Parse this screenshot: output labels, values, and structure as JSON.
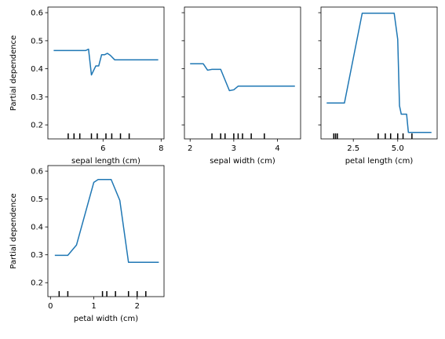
{
  "colors": {
    "line": "#1f77b4",
    "axes": "#000000",
    "deciles": "#000000",
    "background": "#ffffff"
  },
  "chart_data": [
    {
      "type": "line",
      "xlabel": "sepal length (cm)",
      "ylabel": "Partial dependence",
      "xlim": [
        4.1,
        8.1
      ],
      "ylim": [
        0.15,
        0.62
      ],
      "xticks": [
        6,
        8
      ],
      "yticks": [
        0.2,
        0.3,
        0.4,
        0.5,
        0.6
      ],
      "x": [
        4.3,
        5.05,
        5.4,
        5.5,
        5.6,
        5.75,
        5.85,
        5.95,
        6.05,
        6.15,
        6.25,
        6.4,
        7.9
      ],
      "values": [
        0.465,
        0.465,
        0.465,
        0.47,
        0.378,
        0.41,
        0.41,
        0.45,
        0.45,
        0.455,
        0.448,
        0.432,
        0.432
      ],
      "deciles": [
        4.8,
        5.0,
        5.2,
        5.6,
        5.8,
        6.1,
        6.3,
        6.6,
        6.9
      ]
    },
    {
      "type": "line",
      "xlabel": "sepal width (cm)",
      "ylabel": "",
      "xlim": [
        1.87,
        4.53
      ],
      "ylim": [
        0.15,
        0.62
      ],
      "xticks": [
        2,
        3,
        4
      ],
      "yticks": [
        0.2,
        0.3,
        0.4,
        0.5,
        0.6
      ],
      "x": [
        2.0,
        2.3,
        2.4,
        2.5,
        2.7,
        2.9,
        3.0,
        3.1,
        3.5,
        4.4
      ],
      "values": [
        0.418,
        0.418,
        0.395,
        0.398,
        0.398,
        0.322,
        0.325,
        0.338,
        0.338,
        0.338
      ],
      "deciles": [
        2.5,
        2.7,
        2.8,
        3.0,
        3.1,
        3.2,
        3.4,
        3.7
      ]
    },
    {
      "type": "line",
      "xlabel": "petal length (cm)",
      "ylabel": "",
      "xlim": [
        0.68,
        7.22
      ],
      "ylim": [
        0.15,
        0.62
      ],
      "xticks": [
        2.5,
        5.0
      ],
      "xticklabels": [
        "2.5",
        "5.0"
      ],
      "yticks": [
        0.2,
        0.3,
        0.4,
        0.5,
        0.6
      ],
      "x": [
        1.0,
        2.0,
        3.0,
        4.8,
        5.0,
        5.1,
        5.2,
        5.5,
        5.6,
        6.9
      ],
      "values": [
        0.278,
        0.278,
        0.598,
        0.598,
        0.505,
        0.268,
        0.238,
        0.238,
        0.173,
        0.173
      ],
      "deciles": [
        1.4,
        1.5,
        1.6,
        3.9,
        4.3,
        4.6,
        5.0,
        5.3,
        5.8
      ]
    },
    {
      "type": "line",
      "xlabel": "petal width (cm)",
      "ylabel": "Partial dependence",
      "xlim": [
        -0.06,
        2.62
      ],
      "ylim": [
        0.15,
        0.62
      ],
      "xticks": [
        0,
        1,
        2
      ],
      "yticks": [
        0.2,
        0.3,
        0.4,
        0.5,
        0.6
      ],
      "x": [
        0.1,
        0.4,
        0.6,
        1.0,
        1.1,
        1.4,
        1.6,
        1.8,
        2.5
      ],
      "values": [
        0.298,
        0.298,
        0.335,
        0.56,
        0.57,
        0.57,
        0.495,
        0.273,
        0.273
      ],
      "deciles": [
        0.2,
        0.4,
        1.2,
        1.3,
        1.5,
        1.8,
        2.0,
        2.2
      ]
    }
  ]
}
